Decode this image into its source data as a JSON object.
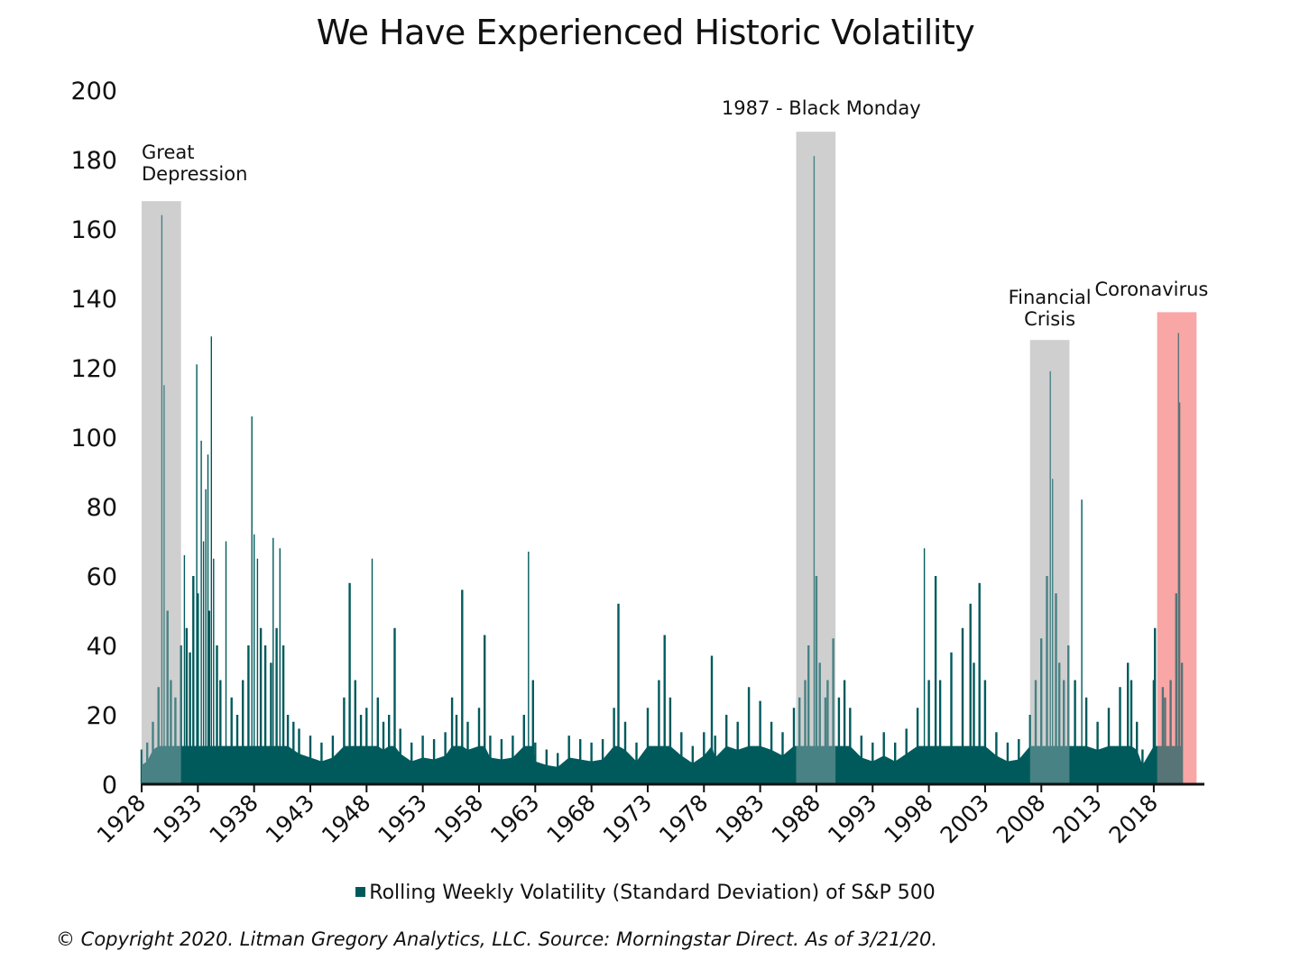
{
  "chart_data": {
    "type": "bar",
    "title": "We Have Experienced Historic Volatility",
    "xlabel": "",
    "ylabel": "",
    "ylim": [
      0,
      200
    ],
    "xlim": [
      1928,
      2022.5
    ],
    "y_ticks": [
      0,
      20,
      40,
      60,
      80,
      100,
      120,
      140,
      160,
      180,
      200
    ],
    "x_ticks": [
      "1928",
      "1933",
      "1938",
      "1943",
      "1948",
      "1953",
      "1958",
      "1963",
      "1968",
      "1973",
      "1978",
      "1983",
      "1988",
      "1993",
      "1998",
      "2003",
      "2008",
      "2013",
      "2018"
    ],
    "grid": false,
    "legend_position": "bottom-center",
    "series": [
      {
        "name": "Rolling Weekly Volatility (Standard Deviation) of S&P 500",
        "color": "#005a5c",
        "points": [
          [
            1928.0,
            10
          ],
          [
            1928.5,
            12
          ],
          [
            1929.0,
            18
          ],
          [
            1929.5,
            28
          ],
          [
            1929.8,
            164
          ],
          [
            1930.0,
            115
          ],
          [
            1930.3,
            50
          ],
          [
            1930.6,
            30
          ],
          [
            1931.0,
            25
          ],
          [
            1931.5,
            40
          ],
          [
            1931.8,
            66
          ],
          [
            1932.0,
            45
          ],
          [
            1932.3,
            38
          ],
          [
            1932.6,
            60
          ],
          [
            1932.9,
            121
          ],
          [
            1933.0,
            55
          ],
          [
            1933.3,
            99
          ],
          [
            1933.5,
            70
          ],
          [
            1933.7,
            85
          ],
          [
            1933.9,
            95
          ],
          [
            1934.0,
            50
          ],
          [
            1934.2,
            129
          ],
          [
            1934.4,
            65
          ],
          [
            1934.7,
            40
          ],
          [
            1935.0,
            30
          ],
          [
            1935.5,
            70
          ],
          [
            1936.0,
            25
          ],
          [
            1936.5,
            20
          ],
          [
            1937.0,
            30
          ],
          [
            1937.5,
            40
          ],
          [
            1937.8,
            106
          ],
          [
            1938.0,
            72
          ],
          [
            1938.3,
            65
          ],
          [
            1938.6,
            45
          ],
          [
            1939.0,
            40
          ],
          [
            1939.5,
            35
          ],
          [
            1939.7,
            71
          ],
          [
            1940.0,
            45
          ],
          [
            1940.3,
            68
          ],
          [
            1940.6,
            40
          ],
          [
            1941.0,
            20
          ],
          [
            1941.5,
            18
          ],
          [
            1942.0,
            16
          ],
          [
            1943.0,
            14
          ],
          [
            1944.0,
            12
          ],
          [
            1945.0,
            14
          ],
          [
            1946.0,
            25
          ],
          [
            1946.5,
            58
          ],
          [
            1947.0,
            30
          ],
          [
            1947.5,
            20
          ],
          [
            1948.0,
            22
          ],
          [
            1948.5,
            65
          ],
          [
            1949.0,
            25
          ],
          [
            1949.5,
            18
          ],
          [
            1950.0,
            20
          ],
          [
            1950.5,
            45
          ],
          [
            1951.0,
            16
          ],
          [
            1952.0,
            12
          ],
          [
            1953.0,
            14
          ],
          [
            1954.0,
            13
          ],
          [
            1955.0,
            15
          ],
          [
            1955.6,
            25
          ],
          [
            1956.0,
            20
          ],
          [
            1956.5,
            56
          ],
          [
            1957.0,
            18
          ],
          [
            1958.0,
            22
          ],
          [
            1958.5,
            43
          ],
          [
            1959.0,
            14
          ],
          [
            1960.0,
            13
          ],
          [
            1961.0,
            14
          ],
          [
            1962.0,
            20
          ],
          [
            1962.4,
            67
          ],
          [
            1962.8,
            30
          ],
          [
            1963.0,
            12
          ],
          [
            1964.0,
            10
          ],
          [
            1965.0,
            9
          ],
          [
            1966.0,
            14
          ],
          [
            1967.0,
            13
          ],
          [
            1968.0,
            12
          ],
          [
            1969.0,
            13
          ],
          [
            1970.0,
            22
          ],
          [
            1970.4,
            52
          ],
          [
            1971.0,
            18
          ],
          [
            1972.0,
            12
          ],
          [
            1973.0,
            22
          ],
          [
            1974.0,
            30
          ],
          [
            1974.5,
            43
          ],
          [
            1975.0,
            25
          ],
          [
            1976.0,
            15
          ],
          [
            1977.0,
            11
          ],
          [
            1978.0,
            15
          ],
          [
            1978.7,
            37
          ],
          [
            1979.0,
            14
          ],
          [
            1980.0,
            20
          ],
          [
            1981.0,
            18
          ],
          [
            1982.0,
            28
          ],
          [
            1983.0,
            24
          ],
          [
            1984.0,
            18
          ],
          [
            1985.0,
            15
          ],
          [
            1986.0,
            22
          ],
          [
            1986.5,
            25
          ],
          [
            1987.0,
            30
          ],
          [
            1987.3,
            40
          ],
          [
            1987.8,
            181
          ],
          [
            1988.0,
            60
          ],
          [
            1988.3,
            35
          ],
          [
            1988.8,
            25
          ],
          [
            1989.0,
            30
          ],
          [
            1989.5,
            42
          ],
          [
            1990.0,
            25
          ],
          [
            1990.5,
            30
          ],
          [
            1991.0,
            22
          ],
          [
            1992.0,
            14
          ],
          [
            1993.0,
            12
          ],
          [
            1994.0,
            15
          ],
          [
            1995.0,
            12
          ],
          [
            1996.0,
            16
          ],
          [
            1997.0,
            22
          ],
          [
            1997.6,
            68
          ],
          [
            1998.0,
            30
          ],
          [
            1998.6,
            60
          ],
          [
            1999.0,
            30
          ],
          [
            2000.0,
            38
          ],
          [
            2001.0,
            45
          ],
          [
            2001.7,
            52
          ],
          [
            2002.0,
            35
          ],
          [
            2002.5,
            58
          ],
          [
            2003.0,
            30
          ],
          [
            2004.0,
            15
          ],
          [
            2005.0,
            12
          ],
          [
            2006.0,
            13
          ],
          [
            2007.0,
            20
          ],
          [
            2007.5,
            30
          ],
          [
            2008.0,
            42
          ],
          [
            2008.5,
            60
          ],
          [
            2008.8,
            119
          ],
          [
            2009.0,
            88
          ],
          [
            2009.3,
            55
          ],
          [
            2009.6,
            35
          ],
          [
            2010.0,
            30
          ],
          [
            2010.4,
            40
          ],
          [
            2011.0,
            30
          ],
          [
            2011.6,
            82
          ],
          [
            2012.0,
            25
          ],
          [
            2013.0,
            18
          ],
          [
            2014.0,
            22
          ],
          [
            2015.0,
            28
          ],
          [
            2015.7,
            35
          ],
          [
            2016.0,
            30
          ],
          [
            2016.5,
            18
          ],
          [
            2017.0,
            10
          ],
          [
            2018.0,
            30
          ],
          [
            2018.1,
            45
          ],
          [
            2018.8,
            28
          ],
          [
            2019.0,
            25
          ],
          [
            2019.5,
            30
          ],
          [
            2020.0,
            55
          ],
          [
            2020.2,
            130
          ],
          [
            2020.3,
            110
          ],
          [
            2020.5,
            35
          ]
        ]
      }
    ],
    "highlight_bands": [
      {
        "label": "Great Depression",
        "x_start": 1928.0,
        "x_end": 1931.5,
        "y_top": 168,
        "color": "#cfcfcf"
      },
      {
        "label": "1987 - Black Monday",
        "x_start": 1986.2,
        "x_end": 1989.7,
        "y_top": 188,
        "color": "#cfcfcf"
      },
      {
        "label": "Financial Crisis",
        "x_start": 2007.0,
        "x_end": 2010.5,
        "y_top": 128,
        "color": "#cfcfcf"
      },
      {
        "label": "Coronavirus",
        "x_start": 2018.3,
        "x_end": 2021.8,
        "y_top": 136,
        "color": "#f9a7a7"
      }
    ],
    "annotations": {
      "great_depression": [
        "Great",
        "Depression"
      ],
      "black_monday": "1987 - Black Monday",
      "financial_crisis": [
        "Financial",
        "Crisis"
      ],
      "coronavirus": "Coronavirus"
    }
  },
  "legend_label": "Rolling Weekly Volatility (Standard Deviation) of S&P 500",
  "footer": "© Copyright 2020. Litman Gregory Analytics, LLC. Source: Morningstar Direct. As of 3/21/20."
}
